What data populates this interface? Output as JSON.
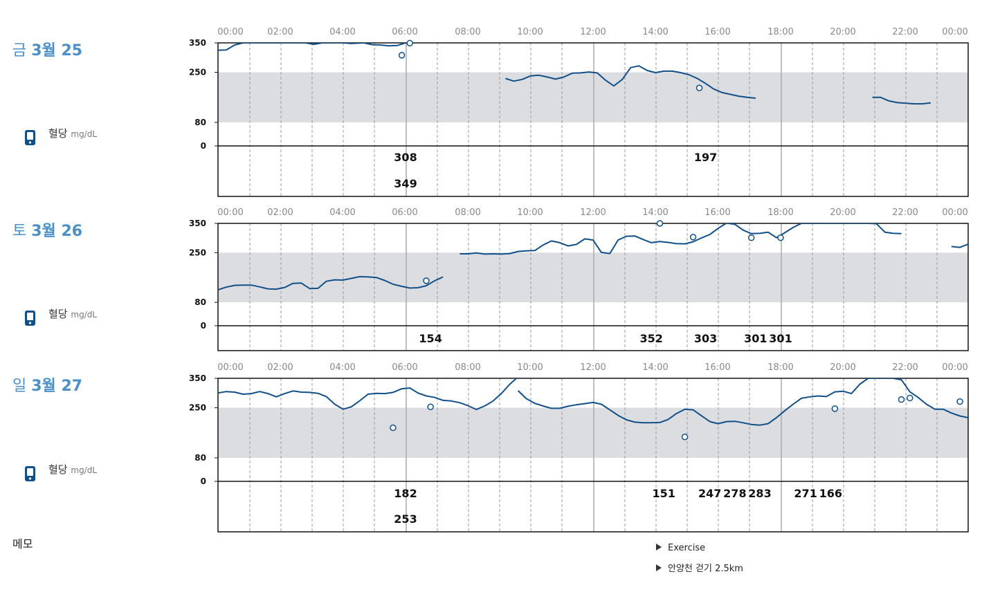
{
  "colors": {
    "line": "#0f4f8a",
    "accent": "#4a90c8",
    "band": "#dcdde0",
    "grid": "#999999"
  },
  "memo_label": "메모",
  "notes": [
    "Exercise",
    "안양천 걷기 2.5km"
  ],
  "chart_data": {
    "type": "line",
    "ylim": [
      0,
      350
    ],
    "y_ticks": [
      350,
      250,
      80,
      0
    ],
    "target_range": [
      80,
      250
    ],
    "x_ticks": [
      "00:00",
      "02:00",
      "04:00",
      "06:00",
      "08:00",
      "10:00",
      "12:00",
      "14:00",
      "16:00",
      "18:00",
      "20:00",
      "22:00",
      "00:00"
    ],
    "metric_label": "혈당",
    "metric_unit": "mg/dL",
    "days": [
      {
        "day": "금",
        "date": "3월 25",
        "segments": [
          [
            [
              0.0,
              325
            ],
            [
              0.33,
              326
            ],
            [
              0.67,
              343
            ],
            [
              1.0,
              350
            ],
            [
              2.0,
              350
            ],
            [
              3.0,
              350
            ],
            [
              3.5,
              350
            ],
            [
              3.83,
              345
            ],
            [
              4.17,
              350
            ],
            [
              5.0,
              350
            ],
            [
              5.33,
              348
            ],
            [
              5.83,
              350
            ],
            [
              6.17,
              344
            ],
            [
              6.5,
              343
            ],
            [
              6.83,
              340
            ],
            [
              7.17,
              341
            ],
            [
              7.5,
              350
            ]
          ],
          [
            [
              11.5,
              229
            ],
            [
              11.83,
              220
            ],
            [
              12.17,
              226
            ],
            [
              12.5,
              238
            ],
            [
              12.83,
              240
            ],
            [
              13.17,
              234
            ],
            [
              13.5,
              227
            ],
            [
              13.83,
              234
            ],
            [
              14.17,
              247
            ],
            [
              14.5,
              248
            ],
            [
              14.83,
              251
            ],
            [
              15.17,
              248
            ],
            [
              15.5,
              223
            ],
            [
              15.83,
              204
            ],
            [
              16.17,
              226
            ],
            [
              16.5,
              266
            ],
            [
              16.83,
              272
            ],
            [
              17.17,
              256
            ],
            [
              17.5,
              249
            ],
            [
              17.83,
              254
            ],
            [
              18.17,
              254
            ],
            [
              18.5,
              249
            ],
            [
              18.83,
              242
            ],
            [
              19.17,
              229
            ],
            [
              19.5,
              212
            ],
            [
              19.83,
              193
            ],
            [
              20.17,
              181
            ],
            [
              20.5,
              175
            ],
            [
              20.83,
              169
            ],
            [
              21.17,
              165
            ],
            [
              21.5,
              162
            ]
          ],
          [
            [
              26.17,
              165
            ],
            [
              26.5,
              165
            ],
            [
              26.83,
              153
            ],
            [
              27.17,
              147
            ],
            [
              27.5,
              145
            ],
            [
              27.83,
              143
            ],
            [
              28.17,
              143
            ],
            [
              28.5,
              146
            ]
          ]
        ],
        "points": [
          [
            7.35,
            308
          ],
          [
            7.67,
            349
          ],
          [
            19.25,
            197
          ]
        ],
        "labels": [
          {
            "t": 7.5,
            "row": 1,
            "value": "308"
          },
          {
            "t": 7.5,
            "row": 2,
            "value": "349"
          },
          {
            "t": 19.5,
            "row": 1,
            "value": "197"
          }
        ]
      },
      {
        "day": "토",
        "date": "3월 26",
        "segments": [
          [
            [
              0.0,
              123
            ],
            [
              0.33,
              132
            ],
            [
              0.67,
              138
            ],
            [
              1.0,
              139
            ],
            [
              1.33,
              139
            ],
            [
              1.67,
              133
            ],
            [
              2.0,
              126
            ],
            [
              2.33,
              125
            ],
            [
              2.67,
              131
            ],
            [
              3.0,
              145
            ],
            [
              3.33,
              146
            ],
            [
              3.67,
              127
            ],
            [
              4.0,
              128
            ],
            [
              4.33,
              152
            ],
            [
              4.67,
              157
            ],
            [
              5.0,
              156
            ],
            [
              5.33,
              162
            ],
            [
              5.67,
              168
            ],
            [
              6.0,
              167
            ],
            [
              6.33,
              165
            ],
            [
              6.67,
              155
            ],
            [
              7.0,
              142
            ],
            [
              7.33,
              135
            ],
            [
              7.67,
              129
            ],
            [
              8.0,
              130
            ],
            [
              8.33,
              137
            ],
            [
              8.67,
              154
            ],
            [
              9.0,
              167
            ]
          ],
          [
            [
              9.67,
              246
            ],
            [
              10.0,
              246
            ],
            [
              10.33,
              249
            ],
            [
              10.67,
              245
            ],
            [
              11.0,
              246
            ],
            [
              11.33,
              245
            ],
            [
              11.67,
              247
            ],
            [
              12.0,
              254
            ],
            [
              12.33,
              256
            ],
            [
              12.67,
              257
            ],
            [
              13.0,
              276
            ],
            [
              13.33,
              290
            ],
            [
              13.67,
              284
            ],
            [
              14.0,
              273
            ],
            [
              14.33,
              278
            ],
            [
              14.67,
              297
            ],
            [
              15.0,
              293
            ],
            [
              15.33,
              251
            ],
            [
              15.67,
              247
            ],
            [
              16.0,
              293
            ],
            [
              16.33,
              306
            ],
            [
              16.67,
              307
            ],
            [
              17.0,
              295
            ],
            [
              17.33,
              284
            ],
            [
              17.67,
              288
            ],
            [
              18.0,
              285
            ],
            [
              18.33,
              281
            ],
            [
              18.67,
              280
            ],
            [
              19.0,
              287
            ],
            [
              19.33,
              300
            ],
            [
              19.67,
              312
            ],
            [
              20.0,
              333
            ],
            [
              20.33,
              351
            ],
            [
              20.67,
              347
            ],
            [
              21.0,
              327
            ],
            [
              21.33,
              315
            ],
            [
              21.67,
              316
            ],
            [
              22.0,
              320
            ],
            [
              22.33,
              301
            ],
            [
              22.67,
              318
            ],
            [
              23.0,
              336
            ],
            [
              23.33,
              350
            ],
            [
              24.0,
              350
            ],
            [
              24.5,
              350
            ],
            [
              25.0,
              350
            ],
            [
              25.5,
              350
            ],
            [
              26.0,
              350
            ],
            [
              26.33,
              349
            ],
            [
              26.67,
              320
            ],
            [
              27.0,
              316
            ],
            [
              27.33,
              315
            ]
          ],
          [
            [
              29.33,
              271
            ],
            [
              29.67,
              268
            ],
            [
              30.0,
              279
            ]
          ]
        ],
        "points": [
          [
            8.33,
            154
          ],
          [
            17.67,
            352
          ],
          [
            19.0,
            303
          ],
          [
            21.33,
            301
          ],
          [
            22.5,
            301
          ]
        ],
        "labels": [
          {
            "t": 8.5,
            "row": 1,
            "value": "154"
          },
          {
            "t": 17.33,
            "row": 1,
            "value": "352"
          },
          {
            "t": 19.5,
            "row": 1,
            "value": "303"
          },
          {
            "t": 21.5,
            "row": 1,
            "value": "301"
          },
          {
            "t": 22.5,
            "row": 1,
            "value": "301"
          }
        ]
      },
      {
        "day": "일",
        "date": "3월 27",
        "segments": [
          [
            [
              0.0,
              300
            ],
            [
              0.33,
              305
            ],
            [
              0.67,
              303
            ],
            [
              1.0,
              296
            ],
            [
              1.33,
              298
            ],
            [
              1.67,
              305
            ],
            [
              2.0,
              298
            ],
            [
              2.33,
              287
            ],
            [
              2.67,
              298
            ],
            [
              3.0,
              307
            ],
            [
              3.33,
              303
            ],
            [
              3.67,
              302
            ],
            [
              4.0,
              299
            ],
            [
              4.33,
              288
            ],
            [
              4.67,
              262
            ],
            [
              5.0,
              245
            ],
            [
              5.33,
              253
            ],
            [
              5.67,
              274
            ],
            [
              6.0,
              296
            ],
            [
              6.33,
              299
            ],
            [
              6.67,
              298
            ],
            [
              7.0,
              302
            ],
            [
              7.33,
              314
            ],
            [
              7.67,
              317
            ],
            [
              8.0,
              300
            ],
            [
              8.33,
              290
            ],
            [
              8.67,
              285
            ],
            [
              9.0,
              275
            ],
            [
              9.33,
              273
            ],
            [
              9.67,
              267
            ],
            [
              10.0,
              257
            ],
            [
              10.33,
              244
            ],
            [
              10.67,
              256
            ],
            [
              11.0,
              273
            ],
            [
              11.33,
              298
            ],
            [
              11.67,
              330
            ],
            [
              12.0,
              355
            ]
          ],
          [
            [
              12.0,
              308
            ],
            [
              12.33,
              281
            ],
            [
              12.67,
              265
            ],
            [
              13.0,
              256
            ],
            [
              13.33,
              248
            ],
            [
              13.67,
              248
            ],
            [
              14.0,
              255
            ],
            [
              14.33,
              260
            ],
            [
              14.67,
              264
            ],
            [
              15.0,
              268
            ],
            [
              15.33,
              262
            ],
            [
              15.67,
              243
            ],
            [
              16.0,
              224
            ],
            [
              16.33,
              209
            ],
            [
              16.67,
              201
            ],
            [
              17.0,
              199
            ],
            [
              17.33,
              199
            ],
            [
              17.67,
              200
            ],
            [
              18.0,
              210
            ],
            [
              18.33,
              230
            ],
            [
              18.67,
              245
            ],
            [
              19.0,
              243
            ],
            [
              19.33,
              223
            ],
            [
              19.67,
              203
            ],
            [
              20.0,
              196
            ],
            [
              20.33,
              203
            ],
            [
              20.67,
              204
            ],
            [
              21.0,
              199
            ],
            [
              21.33,
              193
            ],
            [
              21.67,
              191
            ],
            [
              22.0,
              196
            ],
            [
              22.33,
              216
            ],
            [
              22.67,
              240
            ],
            [
              23.0,
              262
            ],
            [
              23.33,
              282
            ],
            [
              23.67,
              287
            ],
            [
              24.0,
              290
            ],
            [
              24.33,
              288
            ],
            [
              24.67,
              304
            ],
            [
              25.0,
              306
            ],
            [
              25.33,
              298
            ],
            [
              25.67,
              330
            ],
            [
              26.0,
              350
            ],
            [
              26.33,
              350
            ],
            [
              26.67,
              350
            ],
            [
              27.0,
              350
            ],
            [
              27.33,
              345
            ],
            [
              27.67,
              304
            ],
            [
              28.0,
              285
            ],
            [
              28.33,
              262
            ],
            [
              28.67,
              245
            ],
            [
              29.0,
              245
            ],
            [
              29.33,
              232
            ],
            [
              29.67,
              222
            ],
            [
              30.0,
              216
            ],
            [
              30.33,
              214
            ]
          ],
          [
            [
              30.67,
              283
            ],
            [
              31.0,
              275
            ]
          ]
        ],
        "points": [
          [
            7.0,
            182
          ],
          [
            8.5,
            253
          ],
          [
            18.67,
            151
          ],
          [
            24.67,
            247
          ],
          [
            27.33,
            278
          ],
          [
            27.67,
            283
          ],
          [
            29.67,
            271
          ],
          [
            31.67,
            166
          ]
        ],
        "labels": [
          {
            "t": 7.5,
            "row": 1,
            "value": "182"
          },
          {
            "t": 7.5,
            "row": 2,
            "value": "253"
          },
          {
            "t": 17.83,
            "row": 1,
            "value": "151"
          },
          {
            "t": 19.67,
            "row": 1,
            "value": "247"
          },
          {
            "t": 20.67,
            "row": 1,
            "value": "278"
          },
          {
            "t": 21.67,
            "row": 1,
            "value": "283"
          },
          {
            "t": 23.5,
            "row": 1,
            "value": "271"
          },
          {
            "t": 24.5,
            "row": 1,
            "value": "166"
          }
        ]
      }
    ]
  }
}
